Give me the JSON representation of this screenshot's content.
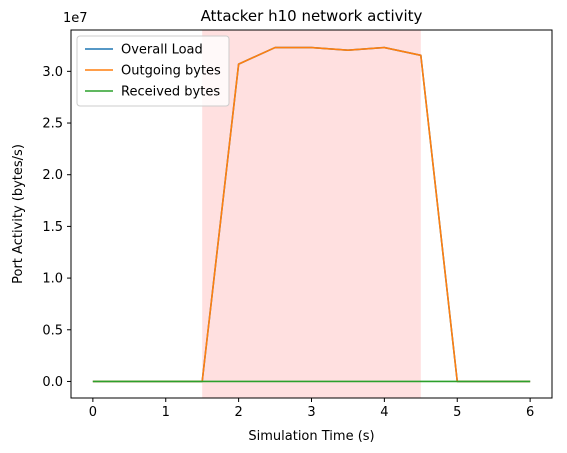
{
  "chart_data": {
    "type": "line",
    "title": "Attacker h10 network activity",
    "xlabel": "Simulation Time (s)",
    "ylabel": "Port Activity (bytes/s)",
    "y_offset_label": "1e7",
    "xlim": [
      -0.3,
      6.3
    ],
    "ylim": [
      -1600000,
      34000000
    ],
    "x_ticks": [
      0,
      1,
      2,
      3,
      4,
      5,
      6
    ],
    "x_tick_labels": [
      "0",
      "1",
      "2",
      "3",
      "4",
      "5",
      "6"
    ],
    "y_ticks": [
      0,
      5000000,
      10000000,
      15000000,
      20000000,
      25000000,
      30000000
    ],
    "y_tick_labels": [
      "0.0",
      "0.5",
      "1.0",
      "1.5",
      "2.0",
      "2.5",
      "3.0"
    ],
    "shaded_region": {
      "x_start": 1.5,
      "x_end": 4.5,
      "color": "#ffe0e0"
    },
    "x": [
      0,
      0.5,
      1.0,
      1.5,
      2.0,
      2.5,
      3.0,
      3.5,
      4.0,
      4.5,
      5.0,
      5.5,
      6.0
    ],
    "series": [
      {
        "name": "Overall Load",
        "color": "#1f77b4",
        "values": [
          0,
          0,
          0,
          0,
          30700000,
          32300000,
          32300000,
          32050000,
          32300000,
          31550000,
          0,
          0,
          0
        ]
      },
      {
        "name": "Outgoing bytes",
        "color": "#ff7f0e",
        "values": [
          0,
          0,
          0,
          0,
          30700000,
          32300000,
          32300000,
          32050000,
          32300000,
          31550000,
          0,
          0,
          0
        ]
      },
      {
        "name": "Received bytes",
        "color": "#2ca02c",
        "values": [
          0,
          0,
          0,
          0,
          0,
          0,
          0,
          0,
          0,
          0,
          0,
          0,
          0
        ]
      }
    ],
    "legend_position": "upper-left",
    "grid": false
  }
}
